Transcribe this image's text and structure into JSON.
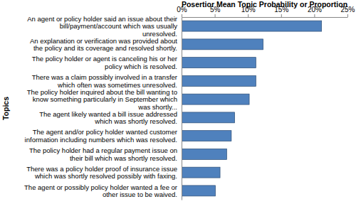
{
  "chart_data": {
    "type": "bar",
    "orientation": "horizontal",
    "title": "Posertior Mean Topic Probability or Proportion",
    "y_label": "Topics",
    "categories": [
      "An agent or policy holder said an issue about their bill/payment/account which was usually unresolved.",
      "An explanation or verification was provided about the policy and its coverage and resolved shortly.",
      "The policy holder or agent is canceling his or her policy which is resolved.",
      "There was a claim possibly involved in a transfer which often was sometimes unresolved.",
      "The policy holder inquired about the bill wanting to know something particularly in September which was shortly...",
      "The agent likely wanted a bill issue addressed which was shortly resolved.",
      "The agent and/or policy holder wanted customer information including numbers which was resolved.",
      "The policy holder had a regular payment issue on their bill which was shortly resolved.",
      "There was a policy holder proof of insurance issue which was shortly resolved possibly with faxing.",
      "The agent or possibly policy holder wanted a fee or other issue to be waived."
    ],
    "values": [
      21.1,
      12.3,
      11.2,
      11.2,
      10.2,
      8.0,
      7.5,
      6.8,
      5.8,
      5.1
    ],
    "color": "#4f81bd",
    "xlim": [
      0,
      25
    ],
    "xticks": [
      {
        "value": 0,
        "label": "0%"
      },
      {
        "value": 5,
        "label": "5%"
      },
      {
        "value": 10,
        "label": "10%"
      },
      {
        "value": 15,
        "label": "15%"
      },
      {
        "value": 20,
        "label": "20%"
      },
      {
        "value": 25,
        "label": "25%"
      }
    ],
    "grid": false
  }
}
